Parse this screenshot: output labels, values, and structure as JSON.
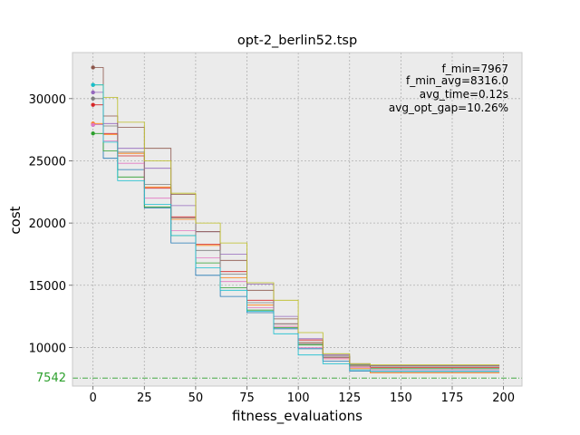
{
  "chart_data": {
    "type": "line",
    "title": "opt-2_berlin52.tsp",
    "xlabel": "fitness_evaluations",
    "ylabel": "cost",
    "xlim": [
      -10,
      209
    ],
    "ylim": [
      6900,
      33700
    ],
    "x_ticks": [
      0,
      25,
      50,
      75,
      100,
      125,
      150,
      175,
      200
    ],
    "y_ticks": [
      10000,
      15000,
      20000,
      25000,
      30000
    ],
    "x_tick_labels": [
      "0",
      "25",
      "50",
      "75",
      "100",
      "125",
      "150",
      "175",
      "200"
    ],
    "y_tick_labels": [
      "10000",
      "15000",
      "20000",
      "25000",
      "30000"
    ],
    "grid": true,
    "background": "#ebebeb",
    "optimum": {
      "value": 7542,
      "label": "7542",
      "color": "#2ca02c",
      "style": "dash-dot"
    },
    "annotations": [
      "f_min=7967",
      "f_min_avg=8316.0",
      "avg_time=0.12s",
      "avg_opt_gap=10.26%"
    ],
    "series": [
      {
        "color": "#1f77b4",
        "x": [
          0,
          5,
          12,
          25,
          38,
          50,
          62,
          75,
          88,
          100,
          112,
          125,
          135,
          150,
          175,
          198
        ],
        "values": [
          27900,
          25200,
          24300,
          21200,
          18400,
          15800,
          14100,
          12800,
          11500,
          9900,
          8900,
          8100,
          8000,
          8000,
          8000,
          8000
        ]
      },
      {
        "color": "#ff7f0e",
        "x": [
          0,
          5,
          12,
          25,
          38,
          50,
          62,
          75,
          88,
          100,
          112,
          125,
          135,
          150,
          175,
          198
        ],
        "values": [
          28000,
          27100,
          25600,
          22900,
          20300,
          18200,
          15600,
          13400,
          11700,
          10400,
          9100,
          8300,
          7967,
          7967,
          7967,
          7967
        ]
      },
      {
        "color": "#2ca02c",
        "x": [
          0,
          5,
          12,
          25,
          38,
          50,
          62,
          75,
          88,
          100,
          112,
          125,
          135,
          150,
          175,
          198
        ],
        "values": [
          27200,
          25800,
          23700,
          21300,
          19000,
          16800,
          14800,
          13000,
          11600,
          10200,
          9300,
          8600,
          8300,
          8300,
          8300,
          8300
        ]
      },
      {
        "color": "#d62728",
        "x": [
          0,
          5,
          12,
          25,
          38,
          50,
          62,
          75,
          88,
          100,
          112,
          125,
          135,
          150,
          175,
          198
        ],
        "values": [
          29500,
          27200,
          25400,
          22800,
          20500,
          18300,
          16100,
          13800,
          11900,
          10600,
          9300,
          8500,
          8400,
          8400,
          8400,
          8400
        ]
      },
      {
        "color": "#9467bd",
        "x": [
          0,
          5,
          12,
          25,
          38,
          50,
          62,
          75,
          88,
          100,
          112,
          125,
          135,
          150,
          175,
          198
        ],
        "values": [
          30500,
          28000,
          26000,
          24400,
          21400,
          19300,
          17500,
          15100,
          12500,
          10700,
          9400,
          8700,
          8550,
          8550,
          8550,
          8550
        ]
      },
      {
        "color": "#8c564b",
        "x": [
          0,
          5,
          12,
          25,
          38,
          50,
          62,
          75,
          88,
          100,
          112,
          125,
          135,
          150,
          175,
          198
        ],
        "values": [
          32500,
          28600,
          27700,
          26000,
          22300,
          19300,
          17000,
          14600,
          12300,
          10400,
          9200,
          8500,
          8500,
          8500,
          8500,
          8500
        ]
      },
      {
        "color": "#e377c2",
        "x": [
          0,
          5,
          12,
          25,
          38,
          50,
          62,
          75,
          88,
          100,
          112,
          125,
          135,
          150,
          175,
          198
        ],
        "values": [
          27900,
          26600,
          24800,
          22000,
          19400,
          17200,
          15300,
          13200,
          11700,
          10000,
          9100,
          8400,
          8200,
          8200,
          8200,
          8200
        ]
      },
      {
        "color": "#7f7f7f",
        "x": [
          0,
          5,
          12,
          25,
          38,
          50,
          62,
          75,
          88,
          100,
          112,
          125,
          135,
          150,
          175,
          198
        ],
        "values": [
          30000,
          27800,
          25700,
          23100,
          20400,
          17800,
          15900,
          13600,
          11900,
          10300,
          9300,
          8600,
          8500,
          8500,
          8500,
          8500
        ]
      },
      {
        "color": "#bcbd22",
        "x": [
          0,
          5,
          12,
          25,
          38,
          50,
          62,
          75,
          88,
          100,
          112,
          125,
          135,
          150,
          175,
          198
        ],
        "values": [
          31100,
          30100,
          28100,
          25000,
          22400,
          20000,
          18400,
          15200,
          13800,
          11200,
          9500,
          8700,
          8600,
          8600,
          8600,
          8600
        ]
      },
      {
        "color": "#17becf",
        "x": [
          0,
          5,
          12,
          25,
          38,
          50,
          62,
          75,
          88,
          100,
          112,
          125,
          135,
          150,
          175,
          198
        ],
        "values": [
          31100,
          26500,
          23400,
          21500,
          19000,
          16400,
          14600,
          12900,
          11100,
          9400,
          8700,
          8200,
          8100,
          8100,
          8100,
          8100
        ]
      }
    ]
  }
}
